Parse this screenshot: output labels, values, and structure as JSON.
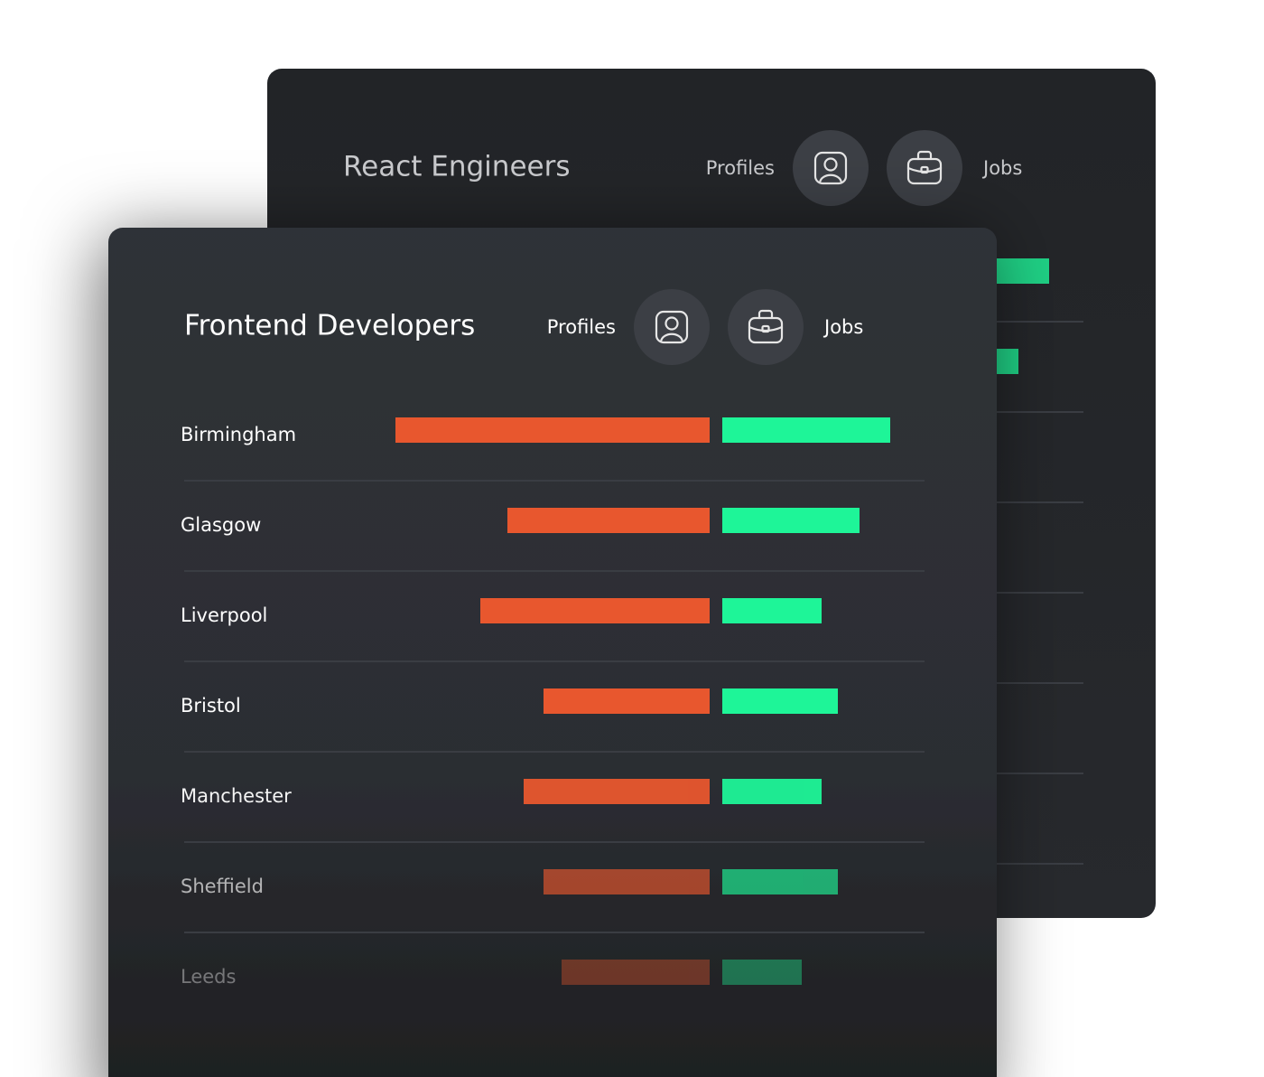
{
  "cards": [
    {
      "title": "React Engineers",
      "profiles_label": "Profiles",
      "jobs_label": "Jobs",
      "rows": [
        {
          "jobs": 186
        },
        {
          "jobs": 152
        }
      ]
    },
    {
      "title": "Frontend Developers",
      "profiles_label": "Profiles",
      "jobs_label": "Jobs",
      "rows": [
        {
          "city": "Birmingham",
          "profiles": 348,
          "jobs": 186
        },
        {
          "city": "Glasgow",
          "profiles": 224,
          "jobs": 152
        },
        {
          "city": "Liverpool",
          "profiles": 254,
          "jobs": 110
        },
        {
          "city": "Bristol",
          "profiles": 184,
          "jobs": 128
        },
        {
          "city": "Manchester",
          "profiles": 206,
          "jobs": 110
        },
        {
          "city": "Sheffield",
          "profiles": 184,
          "jobs": 128
        },
        {
          "city": "Leeds",
          "profiles": 164,
          "jobs": 88
        }
      ]
    }
  ],
  "colors": {
    "profiles": "#e8572e",
    "jobs": "#1ef598"
  }
}
